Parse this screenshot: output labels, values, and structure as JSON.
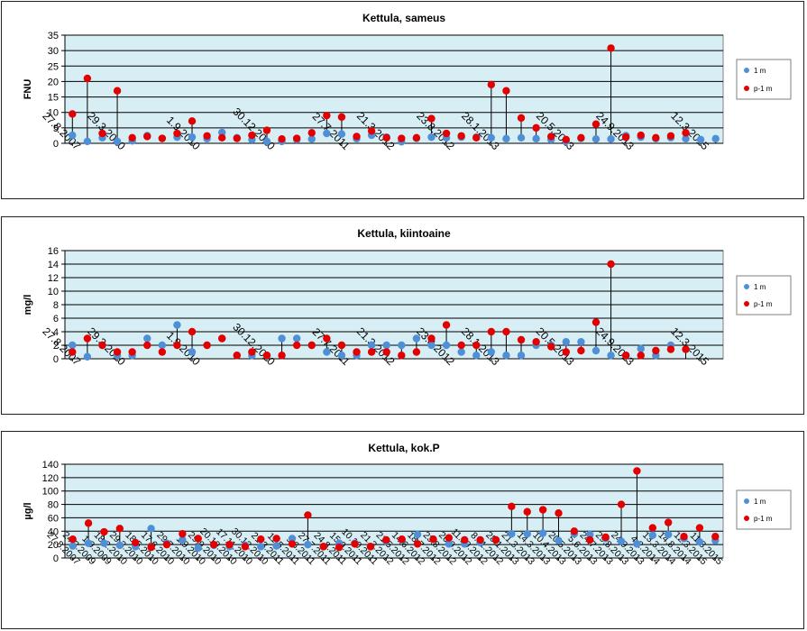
{
  "chart_data": [
    {
      "type": "scatter",
      "title": "Kettula, sameus",
      "ylabel": "FNU",
      "ylim": [
        0,
        35
      ],
      "ystep": 5,
      "grid": true,
      "legend_position": "right",
      "xtick_labels": [
        "27.8.2007",
        "29.3.2010",
        "1.9.2010",
        "30.12.2010",
        "27.7.2011",
        "21.3.2012",
        "23.8.2012",
        "28.1.2013",
        "20.5.2013",
        "24.9.2013",
        "12.3.2015"
      ],
      "xtick_positions": [
        0,
        3,
        8,
        13,
        18,
        21,
        25,
        28,
        33,
        37,
        42
      ],
      "n": 44,
      "series": [
        {
          "name": "1 m",
          "color": "#4f8fd8",
          "values": [
            2.6,
            0.6,
            1.8,
            0.6,
            0.8,
            2.5,
            1.6,
            2,
            2,
            1.5,
            3.5,
            1.8,
            1.2,
            0.6,
            0.6,
            1.2,
            1.4,
            3.2,
            3,
            1.5,
            2.6,
            2,
            0.5,
            1.6,
            2,
            1.8,
            2,
            2,
            1.8,
            1.5,
            1.8,
            1.5,
            1.2,
            0.6,
            1.6,
            1.4,
            1.4,
            2.5,
            2,
            1.5,
            1.8,
            1.5,
            1.2,
            1.5
          ]
        },
        {
          "name": "p-1 m",
          "color": "#e30000",
          "values": [
            9.5,
            21,
            3.2,
            17,
            1.8,
            2.2,
            1.6,
            3.2,
            7.2,
            2.4,
            1.8,
            1.6,
            2.6,
            4.2,
            1.4,
            1.6,
            3.4,
            9,
            8.5,
            2.2,
            4,
            1.8,
            1.6,
            1.8,
            8,
            3.2,
            2.4,
            1.8,
            19,
            17,
            8.2,
            5,
            2.2,
            1.2,
            1.8,
            6.2,
            30.8,
            2,
            2.6,
            1.8,
            2.4,
            3.4,
            0,
            0
          ]
        }
      ]
    },
    {
      "type": "scatter",
      "title": "Kettula, kiintoaine",
      "ylabel": "mg/l",
      "ylim": [
        0,
        16
      ],
      "ystep": 2,
      "grid": true,
      "legend_position": "right",
      "xtick_labels": [
        "27.8.2007",
        "29.3.2010",
        "1.9.2010",
        "30.12.2010",
        "27.7.2011",
        "21.3.2012",
        "23.8.2012",
        "28.1.2013",
        "20.5.2013",
        "24.9.2013",
        "12.3.2015"
      ],
      "xtick_positions": [
        0,
        3,
        8,
        13,
        18,
        21,
        25,
        28,
        33,
        37,
        42
      ],
      "n": 44,
      "series": [
        {
          "name": "1 m",
          "color": "#4f8fd8",
          "values": [
            2,
            0.3,
            2,
            0.5,
            0.5,
            3,
            2,
            5,
            1,
            2,
            3,
            0.5,
            0.5,
            0.5,
            3,
            3,
            2,
            1,
            0.5,
            0.5,
            2,
            2,
            2,
            3,
            2,
            2,
            1,
            0.5,
            1,
            0.5,
            0.5,
            2,
            2,
            2.5,
            2.5,
            1.2,
            0.5,
            0.5,
            1.5,
            0.5,
            2,
            0,
            0,
            0
          ]
        },
        {
          "name": "p-1 m",
          "color": "#e30000",
          "values": [
            1,
            3,
            2,
            1,
            1,
            2,
            1,
            2,
            4,
            2,
            3,
            0.5,
            1,
            0.5,
            0.5,
            2,
            2,
            3,
            2,
            1,
            1,
            1,
            0.5,
            1,
            3,
            5,
            2,
            2,
            4,
            4,
            2.8,
            2.5,
            1.8,
            1,
            1.2,
            5.4,
            14,
            0.5,
            0.5,
            1.2,
            1.4,
            1.4,
            0,
            0
          ]
        }
      ]
    },
    {
      "type": "scatter",
      "title": "Kettula, kok.P",
      "ylabel": "µg/l",
      "ylim": [
        0,
        140
      ],
      "ystep": 20,
      "grid": true,
      "legend_position": "right",
      "xtick_labels": [
        "27.8.2007",
        "24.3.2009",
        "1.9.2009",
        "18.2.2010",
        "29.3.2010",
        "18.5.2010",
        "17.6.2010",
        "29.7.2010",
        "1.9.2010",
        "29.9.2010",
        "20.10.2010",
        "17.11.2010",
        "30.12.2010",
        "21.3.2011",
        "11.5.2011",
        "9.6.2011",
        "27.7.2011",
        "24.8.2011",
        "15.9.2011",
        "10.10.2011",
        "21.3.2012",
        "21.5.2012",
        "14.6.2012",
        "18.7.2012",
        "23.8.2012",
        "26.9.2012",
        "11.10.2012",
        "8.11.2012",
        "28.1.2013",
        "21.3.2013",
        "14.3.2013",
        "10.4.2013",
        "20.5.2013",
        "5.6.2013",
        "24.7.2013",
        "29.8.2013",
        "24.9.2013",
        "4.2.2014",
        "13.3.2014",
        "14.8.2014",
        "12.3.2015",
        "11.8.2015"
      ],
      "xtick_positions": [
        0,
        1,
        2,
        3,
        4,
        5,
        6,
        7,
        8,
        9,
        10,
        11,
        12,
        13,
        14,
        15,
        16,
        17,
        18,
        19,
        20,
        21,
        22,
        23,
        24,
        25,
        26,
        27,
        28,
        29,
        30,
        31,
        32,
        33,
        34,
        35,
        36,
        37,
        38,
        39,
        40,
        41
      ],
      "n": 42,
      "series": [
        {
          "name": "1 m",
          "color": "#4f8fd8",
          "values": [
            18,
            22,
            22,
            19,
            17,
            44,
            22,
            27,
            15,
            19,
            17,
            19,
            17,
            18,
            29,
            20,
            17,
            22,
            22,
            17,
            25,
            27,
            35,
            28,
            21,
            21,
            23,
            27,
            36,
            36,
            37,
            26,
            36,
            35,
            29,
            25,
            21,
            34,
            35,
            29,
            24,
            26
          ]
        },
        {
          "name": "p-1 m",
          "color": "#e30000",
          "values": [
            28,
            52,
            39,
            44,
            23,
            16,
            20,
            36,
            29,
            20,
            20,
            17,
            28,
            29,
            21,
            64,
            17,
            16,
            21,
            17,
            27,
            28,
            21,
            28,
            30,
            27,
            27,
            27,
            77,
            69,
            72,
            67,
            40,
            27,
            31,
            80,
            130,
            45,
            53,
            32,
            45,
            32
          ]
        }
      ]
    }
  ]
}
